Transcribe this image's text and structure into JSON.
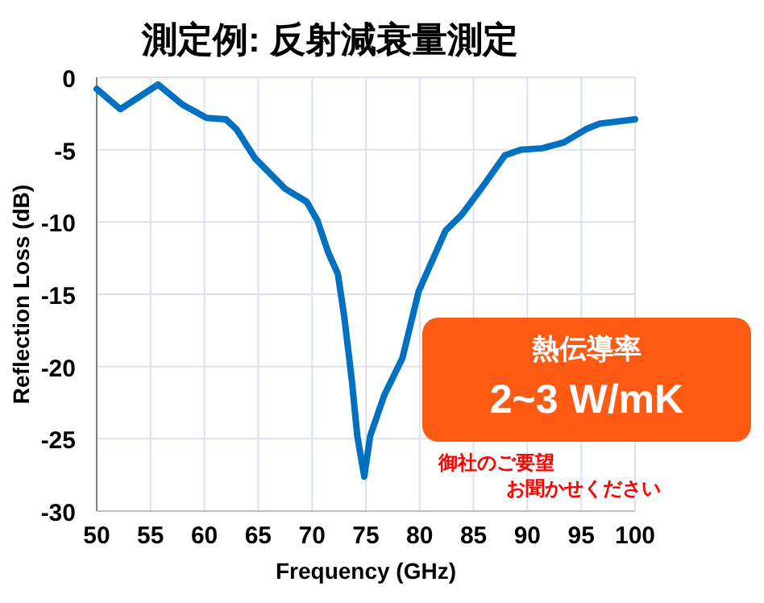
{
  "chart_data": {
    "type": "line",
    "title": "測定例: 反射減衰量測定",
    "xlabel": "Frequency (GHz)",
    "ylabel": "Reflection Loss (dB)",
    "annotations": [
      "熱伝導率",
      "2~3 W/mK",
      "御社のご要望",
      "お聞かせください"
    ],
    "series": [
      {
        "color": "#0070c0",
        "x": [
          50,
          52.2,
          55.7,
          58,
          60.2,
          62,
          63,
          64.7,
          67.5,
          69.5,
          70.5,
          71.5,
          72.4,
          73,
          73.7,
          74.2,
          74.85,
          75.4,
          76.7,
          78.4,
          79.9,
          82.4,
          83.9,
          85.9,
          87.9,
          89.4,
          91.4,
          93.4,
          95.4,
          96.7,
          100
        ],
        "values": [
          -0.8,
          -2.2,
          -0.5,
          -1.9,
          -2.8,
          -2.9,
          -3.6,
          -5.6,
          -7.7,
          -8.6,
          -9.9,
          -12.1,
          -13.6,
          -16.6,
          -21.0,
          -24.8,
          -27.6,
          -24.8,
          -22.0,
          -19.4,
          -14.8,
          -10.6,
          -9.5,
          -7.5,
          -5.4,
          -5.0,
          -4.9,
          -4.5,
          -3.6,
          -3.2,
          -2.9
        ]
      }
    ],
    "xlim": [
      50,
      100
    ],
    "xticks": [
      50,
      55,
      60,
      65,
      70,
      75,
      80,
      85,
      90,
      95,
      100
    ],
    "ylim": [
      -30,
      0
    ],
    "yticks": [
      -30,
      -25,
      -20,
      -15,
      -10,
      -5,
      0
    ],
    "grid": true,
    "marker": "none",
    "line_style": "solid"
  }
}
